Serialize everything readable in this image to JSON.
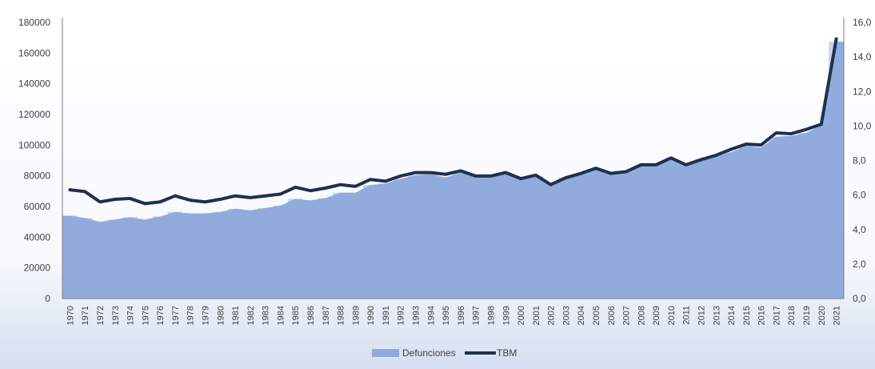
{
  "chart_data": {
    "type": "area",
    "categories": [
      "1970",
      "1971",
      "1972",
      "1973",
      "1974",
      "1975",
      "1976",
      "1977",
      "1978",
      "1979",
      "1980",
      "1981",
      "1982",
      "1983",
      "1984",
      "1985",
      "1986",
      "1987",
      "1988",
      "1989",
      "1990",
      "1991",
      "1992",
      "1993",
      "1994",
      "1995",
      "1996",
      "1997",
      "1998",
      "1999",
      "2000",
      "2001",
      "2002",
      "2003",
      "2004",
      "2005",
      "2006",
      "2007",
      "2008",
      "2009",
      "2010",
      "2011",
      "2012",
      "2013",
      "2014",
      "2015",
      "2016",
      "2017",
      "2018",
      "2019",
      "2020",
      "2021"
    ],
    "series": [
      {
        "name": "Defunciones",
        "type": "area",
        "axis": "left",
        "color": "#8ea9db",
        "values": [
          54000,
          52500,
          50000,
          51500,
          53000,
          51500,
          53500,
          56500,
          55500,
          55500,
          56500,
          58500,
          57500,
          59000,
          60500,
          65000,
          64000,
          65500,
          69000,
          69000,
          74000,
          75000,
          78000,
          80500,
          81000,
          79000,
          82000,
          79500,
          80000,
          81000,
          78500,
          80000,
          75000,
          79000,
          81000,
          84000,
          81000,
          82000,
          86500,
          86500,
          91000,
          87000,
          89500,
          92500,
          95500,
          99500,
          98500,
          105500,
          106000,
          108000,
          113000,
          167500
        ]
      },
      {
        "name": "TBM",
        "type": "line",
        "axis": "right",
        "color": "#1f3050",
        "values": [
          6.3,
          6.2,
          5.6,
          5.75,
          5.8,
          5.5,
          5.6,
          5.95,
          5.7,
          5.6,
          5.75,
          5.95,
          5.85,
          5.95,
          6.05,
          6.45,
          6.25,
          6.4,
          6.6,
          6.5,
          6.9,
          6.8,
          7.1,
          7.3,
          7.3,
          7.2,
          7.4,
          7.1,
          7.1,
          7.3,
          6.95,
          7.15,
          6.6,
          7.0,
          7.25,
          7.55,
          7.25,
          7.35,
          7.75,
          7.75,
          8.15,
          7.75,
          8.05,
          8.3,
          8.65,
          8.95,
          8.9,
          9.6,
          9.55,
          9.8,
          10.1,
          15.05
        ]
      }
    ],
    "y_left": {
      "ticks": [
        "0",
        "20000",
        "40000",
        "60000",
        "80000",
        "100000",
        "120000",
        "140000",
        "160000",
        "180000"
      ],
      "range": [
        0,
        180000
      ]
    },
    "y_right": {
      "ticks": [
        "0,0",
        "2,0",
        "4,0",
        "6,0",
        "8,0",
        "10,0",
        "12,0",
        "14,0",
        "16,0"
      ],
      "range": [
        0,
        16
      ]
    },
    "grid": false,
    "legend_position": "bottom",
    "background": "gradient-blue"
  }
}
